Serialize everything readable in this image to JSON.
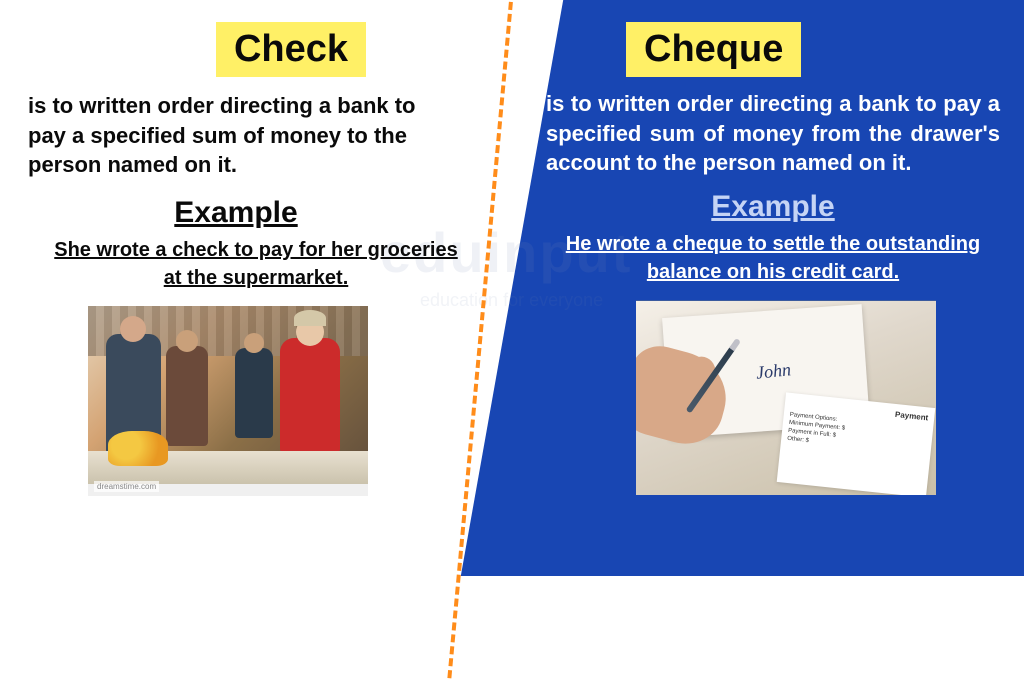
{
  "left": {
    "title": "Check",
    "definition": "is to written order directing a bank to pay a specified sum of money to the person named on it.",
    "example_heading": "Example",
    "example_text": "She wrote a check to pay for her groceries at the supermarket.",
    "image_watermark": "dreamstime.com"
  },
  "right": {
    "title": "Cheque",
    "definition": "is to written order directing a bank to pay a specified sum of money from the drawer's account to the person named on it.",
    "example_heading": "Example",
    "example_text": "He wrote a cheque to settle the outstanding balance on his credit card.",
    "bill_header": "Payment",
    "bill_options": "Payment Options:",
    "bill_min": "Minimum Payment: $",
    "bill_full": "Payment in Full: $",
    "bill_other": "Other: $",
    "signature": "John"
  },
  "watermark": {
    "main": "eduinput",
    "sub": "education for everyone"
  },
  "colors": {
    "highlight_bg": "#fff066",
    "right_bg": "#1846b3",
    "divider": "#ff8c1a",
    "left_text": "#0a0a0a",
    "right_text": "#ffffff",
    "right_heading": "#c5d4f5"
  }
}
